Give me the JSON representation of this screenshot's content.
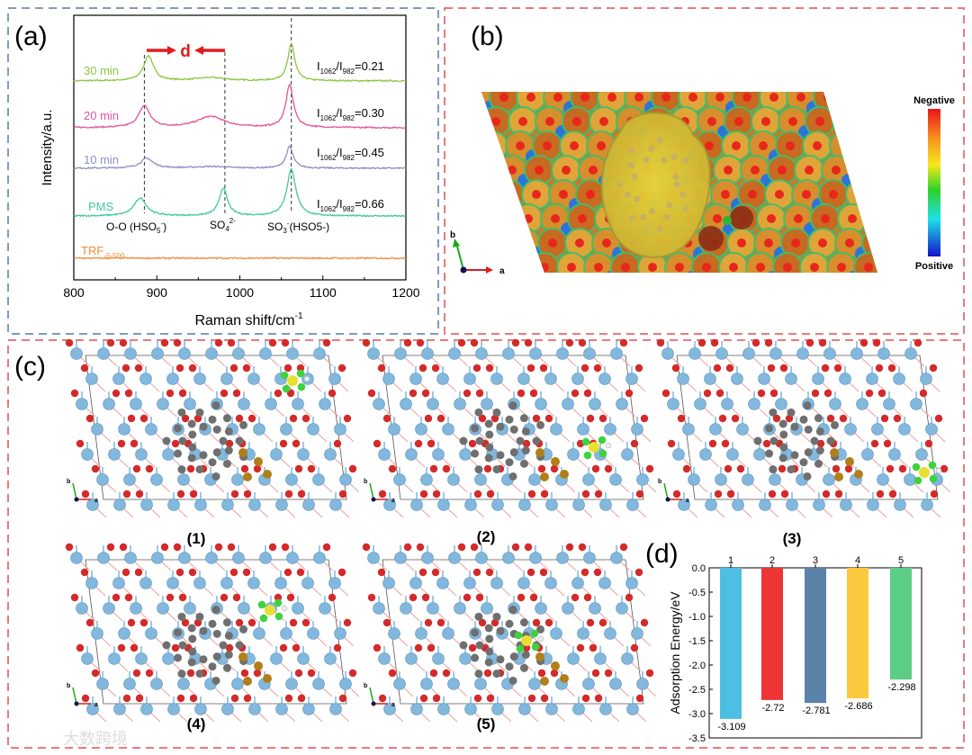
{
  "panels": {
    "a_label": "(a)",
    "b_label": "(b)",
    "c_label": "(c)",
    "d_label": "(d)"
  },
  "chart_data": [
    {
      "type": "line",
      "panel": "a",
      "xlabel": "Raman shift/cm",
      "xlabel_sup": "-1",
      "ylabel": "Intensity/a.u.",
      "xlim": [
        800,
        1200
      ],
      "ylim": [
        0,
        100
      ],
      "xticks": [
        "800",
        "900",
        "1000",
        "1100",
        "1200"
      ],
      "xtick_values": [
        800,
        900,
        1000,
        1100,
        1200
      ],
      "d_label": "d",
      "reference_lines_x": [
        885,
        982,
        1062
      ],
      "peak_annotations": [
        {
          "main": "O-O (HSO",
          "sub": "5",
          "sup": "-",
          "tail": ")"
        },
        {
          "main": "SO",
          "sub": "4",
          "sup": "2-",
          "tail": ""
        },
        {
          "main": "SO",
          "sub": "3",
          "sup": "-",
          "tail": "(HSO5-)"
        }
      ],
      "series": [
        {
          "name": "30 min",
          "color": "#8cc63f",
          "baseline": 75.2,
          "ratio": "=0.21",
          "peaks": [
            [
              890,
              9.5,
              7
            ],
            [
              965,
              1.2,
              22
            ],
            [
              1062,
              14,
              5
            ]
          ]
        },
        {
          "name": "20 min",
          "color": "#e0559a",
          "baseline": 57.5,
          "ratio": "=0.30",
          "peaks": [
            [
              885,
              8.2,
              8
            ],
            [
              965,
              4.2,
              20
            ],
            [
              1060,
              16,
              5.5
            ]
          ]
        },
        {
          "name": "10 min",
          "color": "#8e8fc4",
          "baseline": 42.2,
          "ratio": "=0.45",
          "peaks": [
            [
              888,
              3.7,
              9
            ],
            [
              965,
              0.6,
              25
            ],
            [
              1060,
              8.2,
              5
            ]
          ]
        },
        {
          "name": "PMS",
          "color": "#3ec9a0",
          "baseline": 24.1,
          "ratio": "=0.66",
          "peaks": [
            [
              880,
              6.8,
              9
            ],
            [
              980,
              10.5,
              6
            ],
            [
              1062,
              17.7,
              6.5
            ]
          ]
        },
        {
          "name": "TRF",
          "name_sub": "-5-500",
          "color": "#f08a3c",
          "baseline": 8.2,
          "ratio": null,
          "peaks": []
        }
      ],
      "ratio_label": {
        "I": "I",
        "sub1": "1062",
        "slash": "/I",
        "sub2": "982"
      }
    },
    {
      "type": "bar",
      "panel": "d",
      "categories": [
        "1",
        "2",
        "3",
        "4",
        "5"
      ],
      "values": [
        -3.109,
        -2.72,
        -2.781,
        -2.686,
        -2.298
      ],
      "value_labels": [
        "-3.109",
        "-2.72",
        "-2.781",
        "-2.686",
        "-2.298"
      ],
      "colors": [
        "#4dbfe3",
        "#ee3535",
        "#5b82a8",
        "#fcc93e",
        "#5ccd85"
      ],
      "ylabel": "Adsorption Energy/eV",
      "ylim": [
        -3.5,
        0
      ],
      "yticks": [
        "0.0",
        "-0.5",
        "-1.0",
        "-1.5",
        "-2.0",
        "-2.5",
        "-3.0",
        "-3.5"
      ],
      "ytick_values": [
        0,
        -0.5,
        -1,
        -1.5,
        -2,
        -2.5,
        -3,
        -3.5
      ]
    }
  ],
  "esp": {
    "negative": "Negative",
    "positive": "Positive",
    "axis_a": "a",
    "axis_b": "b"
  },
  "structures": {
    "labels": [
      "(1)",
      "(2)",
      "(3)",
      "(4)",
      "(5)"
    ],
    "axis_a": "a",
    "axis_b": "b"
  },
  "watermark": "大数跨境",
  "colors": {
    "panel_a_border": "#7f9bbd",
    "panel_border": "#e87b7b"
  }
}
